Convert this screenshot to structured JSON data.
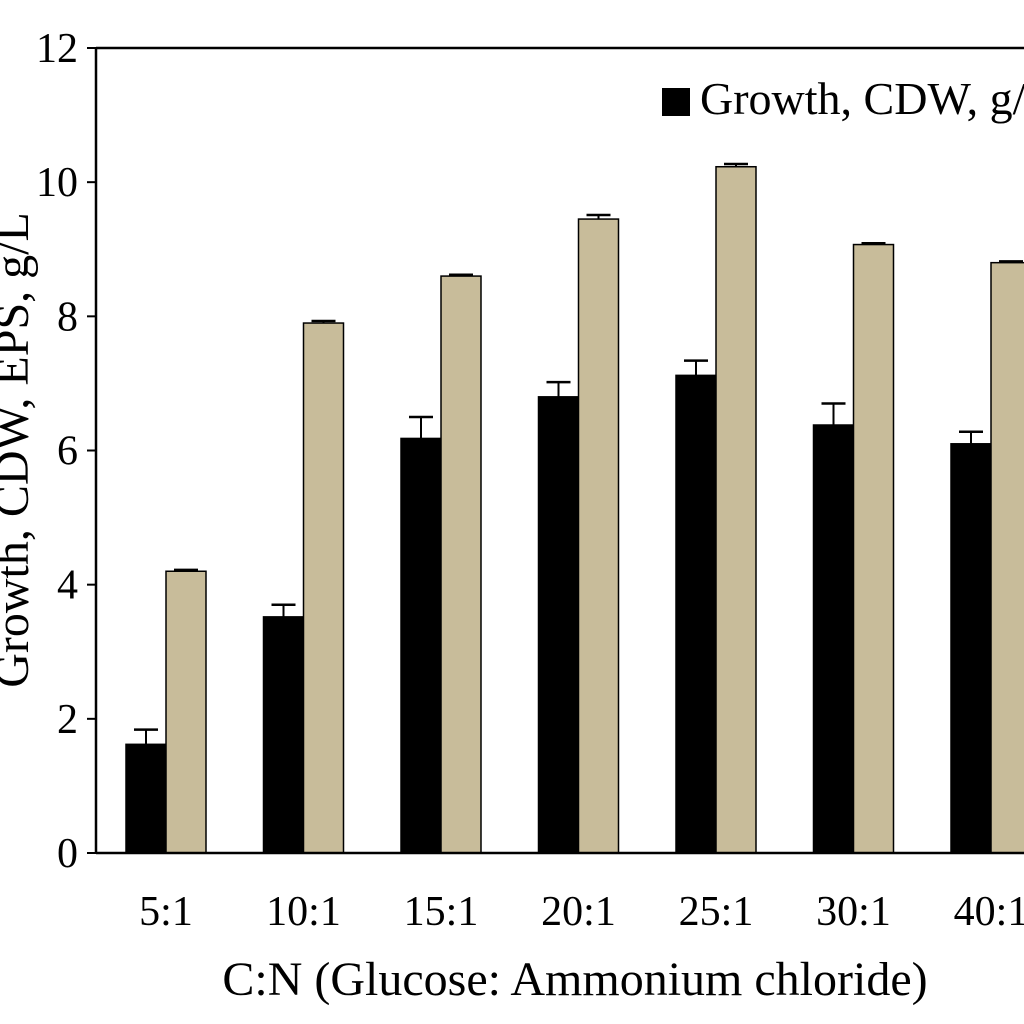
{
  "chart_data": {
    "type": "bar",
    "xlabel": "C:N (Glucose: Ammonium chloride)",
    "ylabel": "Growth, CDW, EPS, g/L",
    "ylim": [
      0,
      12
    ],
    "yticks": [
      0,
      2,
      4,
      6,
      8,
      10,
      12
    ],
    "grid": false,
    "legend_position": "top-right",
    "categories": [
      "5:1",
      "10:1",
      "15:1",
      "20:1",
      "25:1",
      "30:1",
      "40:1"
    ],
    "series": [
      {
        "name": "Growth, CDW, g/L",
        "color": "#000000",
        "values": [
          1.62,
          3.52,
          6.18,
          6.8,
          7.12,
          6.38,
          6.1
        ],
        "errors": [
          0.22,
          0.18,
          0.32,
          0.22,
          0.22,
          0.32,
          0.18
        ]
      },
      {
        "name": "",
        "color": "#c8bc9a",
        "values": [
          4.2,
          7.9,
          8.6,
          9.45,
          10.23,
          9.07,
          8.8
        ],
        "errors": [
          0.02,
          0.03,
          0.02,
          0.06,
          0.04,
          0.02,
          0.02
        ]
      }
    ]
  }
}
